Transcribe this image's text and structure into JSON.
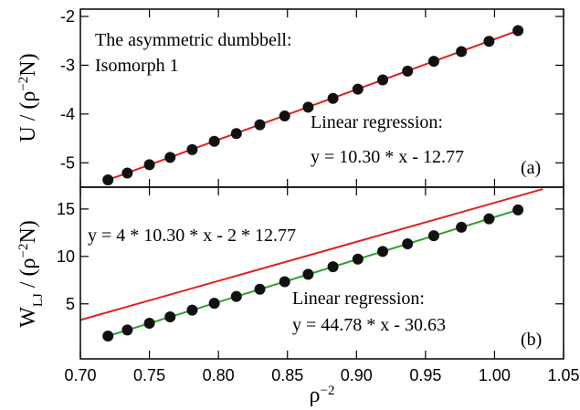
{
  "chart_data": [
    {
      "type": "scatter",
      "ylabel": [
        "U / (ρ",
        "−2",
        "N)"
      ],
      "ylim": [
        -5.5,
        -1.85
      ],
      "yticks": [
        -5,
        -4,
        -3,
        -2
      ],
      "xlim": [
        0.7,
        1.05
      ],
      "xticks": [
        0.7,
        0.75,
        0.8,
        0.85,
        0.9,
        0.95,
        1.0,
        1.05
      ],
      "annotations": [
        "The asymmetric dumbbell:",
        "Isomorph 1",
        "Linear regression:",
        "y = 10.30 * x - 12.77",
        "(a)"
      ],
      "series": [
        {
          "mode": "line",
          "color": "#e02020",
          "x": [
            0.72,
            1.017
          ],
          "values": [
            -5.35,
            -2.29
          ]
        },
        {
          "mode": "markers",
          "color": "#111111",
          "x": [
            0.72,
            0.734,
            0.75,
            0.765,
            0.781,
            0.797,
            0.813,
            0.83,
            0.848,
            0.865,
            0.883,
            0.901,
            0.919,
            0.937,
            0.956,
            0.976,
            0.996,
            1.017
          ],
          "values": [
            -5.35,
            -5.21,
            -5.04,
            -4.89,
            -4.73,
            -4.56,
            -4.4,
            -4.22,
            -4.04,
            -3.86,
            -3.68,
            -3.49,
            -3.3,
            -3.12,
            -2.92,
            -2.72,
            -2.51,
            -2.29
          ]
        }
      ]
    },
    {
      "type": "scatter",
      "ylabel": [
        "W",
        "LJ",
        " / (ρ",
        "−2",
        "N)"
      ],
      "xlabel": [
        "ρ",
        "−2"
      ],
      "ylim": [
        -0.8,
        17.3
      ],
      "yticks": [
        5,
        10,
        15
      ],
      "xlim": [
        0.7,
        1.05
      ],
      "xticks": [
        {
          "value": 0.7,
          "label": "0.70"
        },
        {
          "value": 0.75,
          "label": "0.75"
        },
        {
          "value": 0.8,
          "label": "0.80"
        },
        {
          "value": 0.85,
          "label": "0.85"
        },
        {
          "value": 0.9,
          "label": "0.90"
        },
        {
          "value": 0.95,
          "label": "0.95"
        },
        {
          "value": 1.0,
          "label": "1.00"
        },
        {
          "value": 1.05,
          "label": "1.05"
        }
      ],
      "annotations": [
        "y = 4 * 10.30 * x - 2 * 12.77",
        "Linear regression:",
        "y = 44.78 * x - 30.63",
        "(b)"
      ],
      "series": [
        {
          "mode": "line",
          "color": "#e02020",
          "x": [
            0.7,
            1.035
          ],
          "values": [
            3.3,
            17.1
          ]
        },
        {
          "mode": "line",
          "color": "#30a030",
          "x": [
            0.72,
            1.017
          ],
          "values": [
            1.61,
            14.91
          ]
        },
        {
          "mode": "markers",
          "color": "#111111",
          "x": [
            0.72,
            0.734,
            0.75,
            0.765,
            0.781,
            0.797,
            0.813,
            0.83,
            0.848,
            0.865,
            0.883,
            0.901,
            0.919,
            0.937,
            0.956,
            0.976,
            0.996,
            1.017
          ],
          "values": [
            1.61,
            2.24,
            2.96,
            3.63,
            4.34,
            5.06,
            5.78,
            6.54,
            7.34,
            8.12,
            8.91,
            9.72,
            10.52,
            11.33,
            12.18,
            13.08,
            13.97,
            14.91
          ]
        }
      ]
    }
  ]
}
